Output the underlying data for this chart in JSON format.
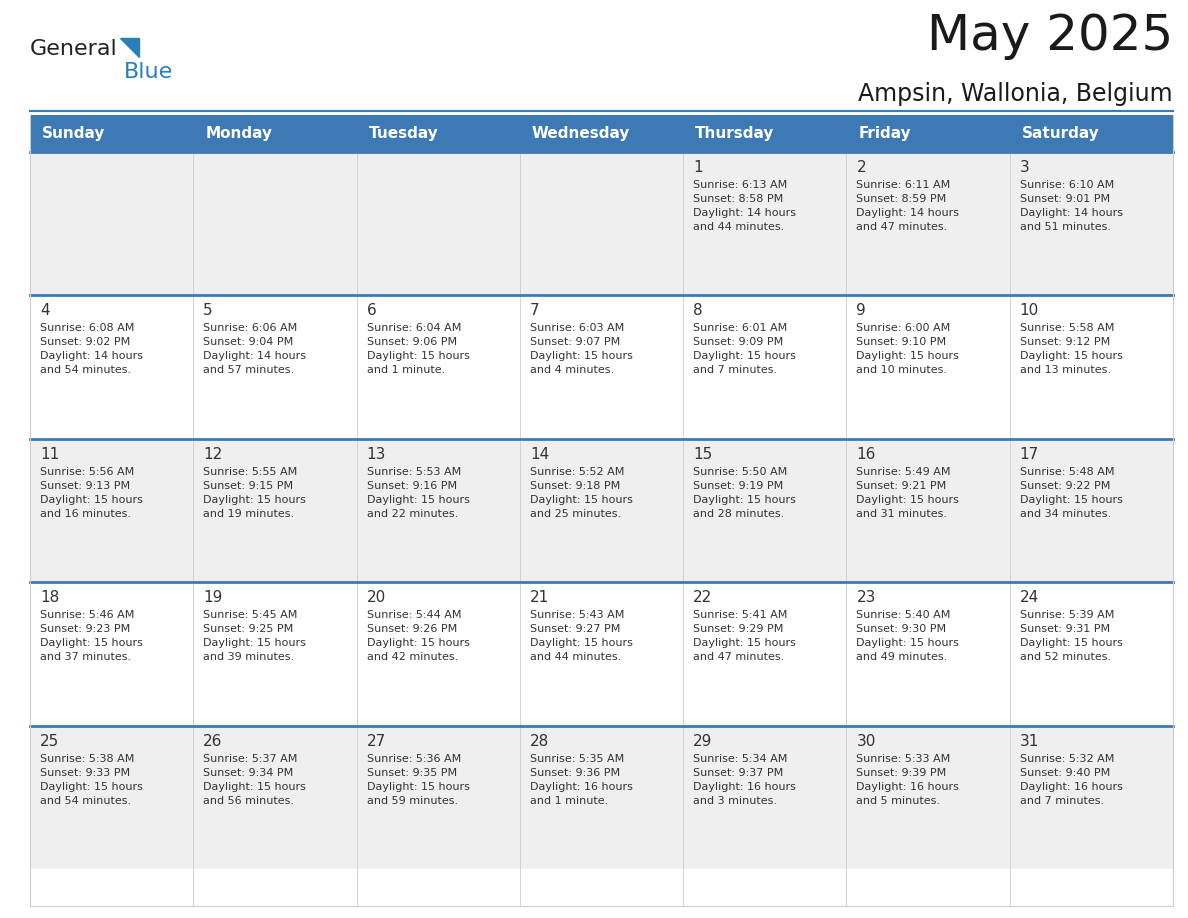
{
  "title": "May 2025",
  "subtitle": "Ampsin, Wallonia, Belgium",
  "header_bg": "#3d7ab5",
  "header_text_color": "#FFFFFF",
  "weekdays": [
    "Sunday",
    "Monday",
    "Tuesday",
    "Wednesday",
    "Thursday",
    "Friday",
    "Saturday"
  ],
  "row_bg_odd": "#EFEFEF",
  "row_bg_even": "#FFFFFF",
  "cell_text_color": "#333333",
  "day_num_color": "#333333",
  "separator_color": "#3d7ab5",
  "grid_line_color": "#cccccc",
  "calendar": [
    [
      {
        "day": "",
        "text": ""
      },
      {
        "day": "",
        "text": ""
      },
      {
        "day": "",
        "text": ""
      },
      {
        "day": "",
        "text": ""
      },
      {
        "day": "1",
        "text": "Sunrise: 6:13 AM\nSunset: 8:58 PM\nDaylight: 14 hours\nand 44 minutes."
      },
      {
        "day": "2",
        "text": "Sunrise: 6:11 AM\nSunset: 8:59 PM\nDaylight: 14 hours\nand 47 minutes."
      },
      {
        "day": "3",
        "text": "Sunrise: 6:10 AM\nSunset: 9:01 PM\nDaylight: 14 hours\nand 51 minutes."
      }
    ],
    [
      {
        "day": "4",
        "text": "Sunrise: 6:08 AM\nSunset: 9:02 PM\nDaylight: 14 hours\nand 54 minutes."
      },
      {
        "day": "5",
        "text": "Sunrise: 6:06 AM\nSunset: 9:04 PM\nDaylight: 14 hours\nand 57 minutes."
      },
      {
        "day": "6",
        "text": "Sunrise: 6:04 AM\nSunset: 9:06 PM\nDaylight: 15 hours\nand 1 minute."
      },
      {
        "day": "7",
        "text": "Sunrise: 6:03 AM\nSunset: 9:07 PM\nDaylight: 15 hours\nand 4 minutes."
      },
      {
        "day": "8",
        "text": "Sunrise: 6:01 AM\nSunset: 9:09 PM\nDaylight: 15 hours\nand 7 minutes."
      },
      {
        "day": "9",
        "text": "Sunrise: 6:00 AM\nSunset: 9:10 PM\nDaylight: 15 hours\nand 10 minutes."
      },
      {
        "day": "10",
        "text": "Sunrise: 5:58 AM\nSunset: 9:12 PM\nDaylight: 15 hours\nand 13 minutes."
      }
    ],
    [
      {
        "day": "11",
        "text": "Sunrise: 5:56 AM\nSunset: 9:13 PM\nDaylight: 15 hours\nand 16 minutes."
      },
      {
        "day": "12",
        "text": "Sunrise: 5:55 AM\nSunset: 9:15 PM\nDaylight: 15 hours\nand 19 minutes."
      },
      {
        "day": "13",
        "text": "Sunrise: 5:53 AM\nSunset: 9:16 PM\nDaylight: 15 hours\nand 22 minutes."
      },
      {
        "day": "14",
        "text": "Sunrise: 5:52 AM\nSunset: 9:18 PM\nDaylight: 15 hours\nand 25 minutes."
      },
      {
        "day": "15",
        "text": "Sunrise: 5:50 AM\nSunset: 9:19 PM\nDaylight: 15 hours\nand 28 minutes."
      },
      {
        "day": "16",
        "text": "Sunrise: 5:49 AM\nSunset: 9:21 PM\nDaylight: 15 hours\nand 31 minutes."
      },
      {
        "day": "17",
        "text": "Sunrise: 5:48 AM\nSunset: 9:22 PM\nDaylight: 15 hours\nand 34 minutes."
      }
    ],
    [
      {
        "day": "18",
        "text": "Sunrise: 5:46 AM\nSunset: 9:23 PM\nDaylight: 15 hours\nand 37 minutes."
      },
      {
        "day": "19",
        "text": "Sunrise: 5:45 AM\nSunset: 9:25 PM\nDaylight: 15 hours\nand 39 minutes."
      },
      {
        "day": "20",
        "text": "Sunrise: 5:44 AM\nSunset: 9:26 PM\nDaylight: 15 hours\nand 42 minutes."
      },
      {
        "day": "21",
        "text": "Sunrise: 5:43 AM\nSunset: 9:27 PM\nDaylight: 15 hours\nand 44 minutes."
      },
      {
        "day": "22",
        "text": "Sunrise: 5:41 AM\nSunset: 9:29 PM\nDaylight: 15 hours\nand 47 minutes."
      },
      {
        "day": "23",
        "text": "Sunrise: 5:40 AM\nSunset: 9:30 PM\nDaylight: 15 hours\nand 49 minutes."
      },
      {
        "day": "24",
        "text": "Sunrise: 5:39 AM\nSunset: 9:31 PM\nDaylight: 15 hours\nand 52 minutes."
      }
    ],
    [
      {
        "day": "25",
        "text": "Sunrise: 5:38 AM\nSunset: 9:33 PM\nDaylight: 15 hours\nand 54 minutes."
      },
      {
        "day": "26",
        "text": "Sunrise: 5:37 AM\nSunset: 9:34 PM\nDaylight: 15 hours\nand 56 minutes."
      },
      {
        "day": "27",
        "text": "Sunrise: 5:36 AM\nSunset: 9:35 PM\nDaylight: 15 hours\nand 59 minutes."
      },
      {
        "day": "28",
        "text": "Sunrise: 5:35 AM\nSunset: 9:36 PM\nDaylight: 16 hours\nand 1 minute."
      },
      {
        "day": "29",
        "text": "Sunrise: 5:34 AM\nSunset: 9:37 PM\nDaylight: 16 hours\nand 3 minutes."
      },
      {
        "day": "30",
        "text": "Sunrise: 5:33 AM\nSunset: 9:39 PM\nDaylight: 16 hours\nand 5 minutes."
      },
      {
        "day": "31",
        "text": "Sunrise: 5:32 AM\nSunset: 9:40 PM\nDaylight: 16 hours\nand 7 minutes."
      }
    ]
  ],
  "logo_general_color": "#222222",
  "logo_blue_color": "#2980B9",
  "logo_triangle_color": "#2980B9",
  "fig_width": 11.88,
  "fig_height": 9.18
}
